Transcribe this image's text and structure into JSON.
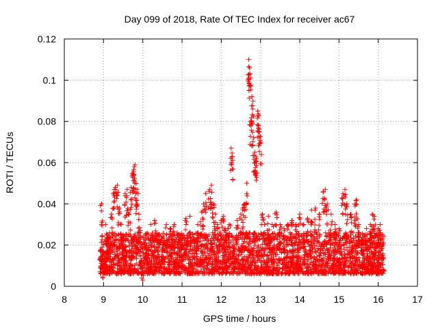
{
  "chart_data": {
    "type": "scatter",
    "title": "Day 099 of 2018, Rate Of TEC Index for receiver ac67",
    "xlabel": "GPS time / hours",
    "ylabel": "ROTI / TECUs",
    "xlim": [
      8,
      17
    ],
    "ylim": [
      0,
      0.12
    ],
    "xticks": [
      8,
      9,
      10,
      11,
      12,
      13,
      14,
      15,
      16,
      17
    ],
    "yticks": [
      0,
      0.02,
      0.04,
      0.06,
      0.08,
      0.1,
      0.12
    ],
    "xtick_labels": [
      "8",
      "9",
      "10",
      "11",
      "12",
      "13",
      "14",
      "15",
      "16",
      "17"
    ],
    "ytick_labels": [
      "0",
      "0.02",
      "0.04",
      "0.06",
      "0.08",
      "0.1",
      "0.12"
    ],
    "grid": true,
    "marker": "+",
    "marker_color": "#ff0000",
    "series": [
      {
        "name": "ROTI ac67",
        "points": [
          [
            8.95,
            0.04
          ],
          [
            8.98,
            0.004
          ],
          [
            9.05,
            0.03
          ],
          [
            9.1,
            0.025
          ],
          [
            9.2,
            0.035
          ],
          [
            9.25,
            0.045
          ],
          [
            9.3,
            0.048
          ],
          [
            9.35,
            0.049
          ],
          [
            9.4,
            0.038
          ],
          [
            9.45,
            0.03
          ],
          [
            9.5,
            0.025
          ],
          [
            9.55,
            0.045
          ],
          [
            9.6,
            0.047
          ],
          [
            9.65,
            0.035
          ],
          [
            9.7,
            0.048
          ],
          [
            9.75,
            0.055
          ],
          [
            9.78,
            0.058
          ],
          [
            9.8,
            0.059
          ],
          [
            9.82,
            0.045
          ],
          [
            9.85,
            0.047
          ],
          [
            9.9,
            0.035
          ],
          [
            9.95,
            0.01
          ],
          [
            10.0,
            0.003
          ],
          [
            10.05,
            0.02
          ],
          [
            10.1,
            0.015
          ],
          [
            10.2,
            0.03
          ],
          [
            10.3,
            0.032
          ],
          [
            10.4,
            0.025
          ],
          [
            10.5,
            0.02
          ],
          [
            10.6,
            0.03
          ],
          [
            10.7,
            0.028
          ],
          [
            10.8,
            0.03
          ],
          [
            10.9,
            0.025
          ],
          [
            11.0,
            0.02
          ],
          [
            11.1,
            0.033
          ],
          [
            11.2,
            0.034
          ],
          [
            11.3,
            0.025
          ],
          [
            11.4,
            0.03
          ],
          [
            11.5,
            0.036
          ],
          [
            11.55,
            0.04
          ],
          [
            11.6,
            0.045
          ],
          [
            11.7,
            0.047
          ],
          [
            11.75,
            0.049
          ],
          [
            11.8,
            0.04
          ],
          [
            11.85,
            0.035
          ],
          [
            11.9,
            0.03
          ],
          [
            11.95,
            0.02
          ],
          [
            12.0,
            0.032
          ],
          [
            12.05,
            0.034
          ],
          [
            12.1,
            0.028
          ],
          [
            12.2,
            0.03
          ],
          [
            12.25,
            0.067
          ],
          [
            12.28,
            0.063
          ],
          [
            12.3,
            0.02
          ],
          [
            12.4,
            0.032
          ],
          [
            12.5,
            0.035
          ],
          [
            12.55,
            0.038
          ],
          [
            12.6,
            0.04
          ],
          [
            12.65,
            0.05
          ],
          [
            12.7,
            0.11
          ],
          [
            12.72,
            0.106
          ],
          [
            12.73,
            0.103
          ],
          [
            12.75,
            0.08
          ],
          [
            12.78,
            0.092
          ],
          [
            12.8,
            0.086
          ],
          [
            12.82,
            0.072
          ],
          [
            12.85,
            0.065
          ],
          [
            12.88,
            0.063
          ],
          [
            12.9,
            0.062
          ],
          [
            12.93,
            0.085
          ],
          [
            12.95,
            0.078
          ],
          [
            12.97,
            0.075
          ],
          [
            13.0,
            0.07
          ],
          [
            13.05,
            0.035
          ],
          [
            13.1,
            0.03
          ],
          [
            13.2,
            0.034
          ],
          [
            13.3,
            0.03
          ],
          [
            13.4,
            0.036
          ],
          [
            13.5,
            0.03
          ],
          [
            13.6,
            0.028
          ],
          [
            13.7,
            0.03
          ],
          [
            13.8,
            0.032
          ],
          [
            13.9,
            0.03
          ],
          [
            14.0,
            0.035
          ],
          [
            14.1,
            0.03
          ],
          [
            14.2,
            0.033
          ],
          [
            14.3,
            0.037
          ],
          [
            14.4,
            0.038
          ],
          [
            14.5,
            0.035
          ],
          [
            14.6,
            0.046
          ],
          [
            14.65,
            0.047
          ],
          [
            14.7,
            0.04
          ],
          [
            14.8,
            0.035
          ],
          [
            14.9,
            0.03
          ],
          [
            15.0,
            0.028
          ],
          [
            15.1,
            0.045
          ],
          [
            15.15,
            0.047
          ],
          [
            15.2,
            0.04
          ],
          [
            15.3,
            0.035
          ],
          [
            15.4,
            0.04
          ],
          [
            15.45,
            0.042
          ],
          [
            15.5,
            0.03
          ],
          [
            15.6,
            0.025
          ],
          [
            15.7,
            0.028
          ],
          [
            15.8,
            0.03
          ],
          [
            15.85,
            0.035
          ],
          [
            15.9,
            0.034
          ],
          [
            16.0,
            0.028
          ],
          [
            16.05,
            0.03
          ],
          [
            16.1,
            0.025
          ]
        ],
        "background_band": {
          "x_from": 8.9,
          "x_to": 16.15,
          "y_min": 0.006,
          "y_max": 0.026,
          "density_per_hour": 420
        }
      }
    ]
  }
}
